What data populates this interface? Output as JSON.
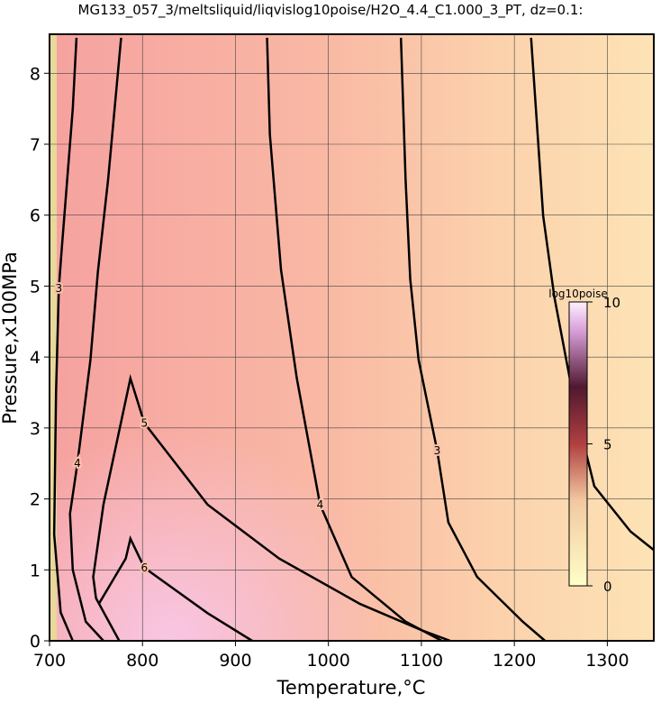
{
  "chart_data": {
    "type": "contour",
    "title": "MG133_057_3/meltsliquid/liqvislog10poise/H2O_4.4_C1.000_3_PT, dz=0.1:",
    "xlabel": "Temperature,°C",
    "ylabel": "Pressure,x100MPa",
    "xlim": [
      700,
      1350
    ],
    "ylim": [
      0,
      8.55
    ],
    "xticks": [
      700,
      800,
      900,
      1000,
      1100,
      1200,
      1300
    ],
    "yticks": [
      0,
      1,
      2,
      3,
      4,
      5,
      6,
      7,
      8
    ],
    "grid": true,
    "colorbar": {
      "label": "log10poise",
      "clim": [
        0,
        10
      ],
      "ticks": [
        0,
        5,
        10
      ]
    },
    "contours": [
      {
        "level": 2,
        "x": [
          1218,
          1231,
          1243,
          1267,
          1286,
          1325,
          1350
        ],
        "y": [
          8.5,
          5.99,
          4.85,
          3.19,
          2.18,
          1.54,
          1.28
        ]
      },
      {
        "level": 3,
        "x": [
          1078,
          1083,
          1088,
          1097,
          1117,
          1129,
          1160,
          1209,
          1233
        ],
        "y": [
          8.5,
          6.5,
          5.1,
          3.96,
          2.68,
          1.67,
          0.9,
          0.27,
          0
        ]
      },
      {
        "level": 4,
        "x": [
          934,
          937,
          949,
          966,
          991,
          1025,
          1083,
          1122
        ],
        "y": [
          8.5,
          7.14,
          5.23,
          3.7,
          1.92,
          0.9,
          0.27,
          0
        ]
      },
      {
        "level": 4,
        "x": [
          777,
          770,
          763,
          752,
          744,
          730,
          722,
          725,
          739,
          758
        ],
        "y": [
          8.5,
          7.5,
          6.5,
          5.2,
          3.96,
          2.5,
          1.79,
          1.0,
          0.27,
          0
        ]
      },
      {
        "level": 3,
        "x": [
          729,
          725,
          719,
          713,
          710,
          707,
          705,
          712,
          725
        ],
        "y": [
          8.5,
          7.5,
          6.5,
          5.5,
          4.97,
          3.5,
          1.5,
          0.4,
          0
        ]
      },
      {
        "level": 5,
        "x": [
          775,
          750,
          747,
          758,
          787,
          802,
          870,
          947,
          1034,
          1102,
          1131
        ],
        "y": [
          0,
          0.6,
          0.9,
          1.92,
          3.7,
          3.07,
          1.92,
          1.16,
          0.52,
          0.14,
          0
        ]
      },
      {
        "level": 6,
        "x": [
          753,
          782,
          787,
          802,
          870,
          918
        ],
        "y": [
          0.52,
          1.16,
          1.44,
          1.03,
          0.39,
          0
        ]
      }
    ]
  }
}
